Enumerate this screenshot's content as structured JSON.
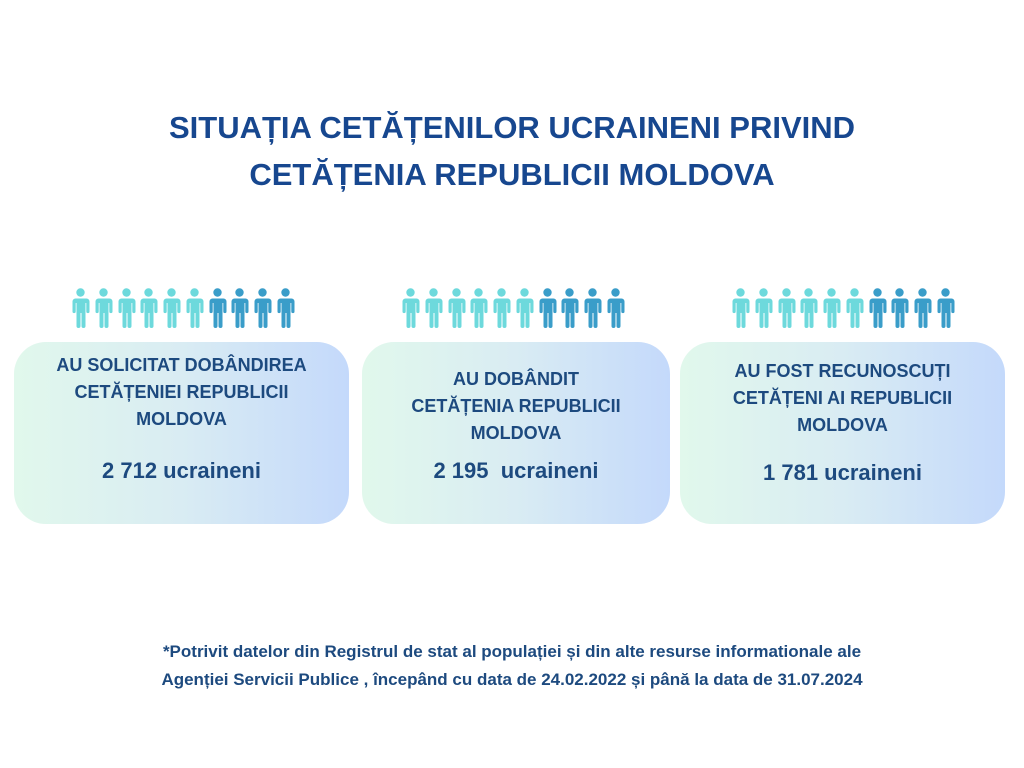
{
  "title": {
    "line1": "SITUAȚIA CETĂȚENILOR UCRAINENI PRIVIND",
    "line2": "CETĂȚENIA REPUBLICII MOLDOVA"
  },
  "colors": {
    "person_light": "#6dd9dc",
    "person_dark": "#3a9dc9",
    "text": "#1d4a7f",
    "title": "#17478f"
  },
  "people_icons": {
    "count_per_group": 10,
    "light_count": 6,
    "icon": "person-icon"
  },
  "cards": [
    {
      "title_lines": [
        "AU SOLICITAT DOBÂNDIREA",
        "CETĂȚENIEI REPUBLICII",
        "MOLDOVA"
      ],
      "value": "2 712 ucraineni"
    },
    {
      "title_lines": [
        "AU DOBÂNDIT",
        "CETĂȚENIA REPUBLICII",
        "MOLDOVA"
      ],
      "value": "2 195  ucraineni"
    },
    {
      "title_lines": [
        "AU FOST RECUNOSCUȚI",
        "CETĂȚENI AI REPUBLICII",
        "MOLDOVA"
      ],
      "value": "1 781 ucraineni"
    }
  ],
  "footnote": {
    "line1": "*Potrivit datelor din Registrul de stat al populației și din alte resurse informationale ale",
    "line2": "Agenției Servicii Publice , începând cu data de 24.02.2022 și până la data de 31.07.2024"
  }
}
